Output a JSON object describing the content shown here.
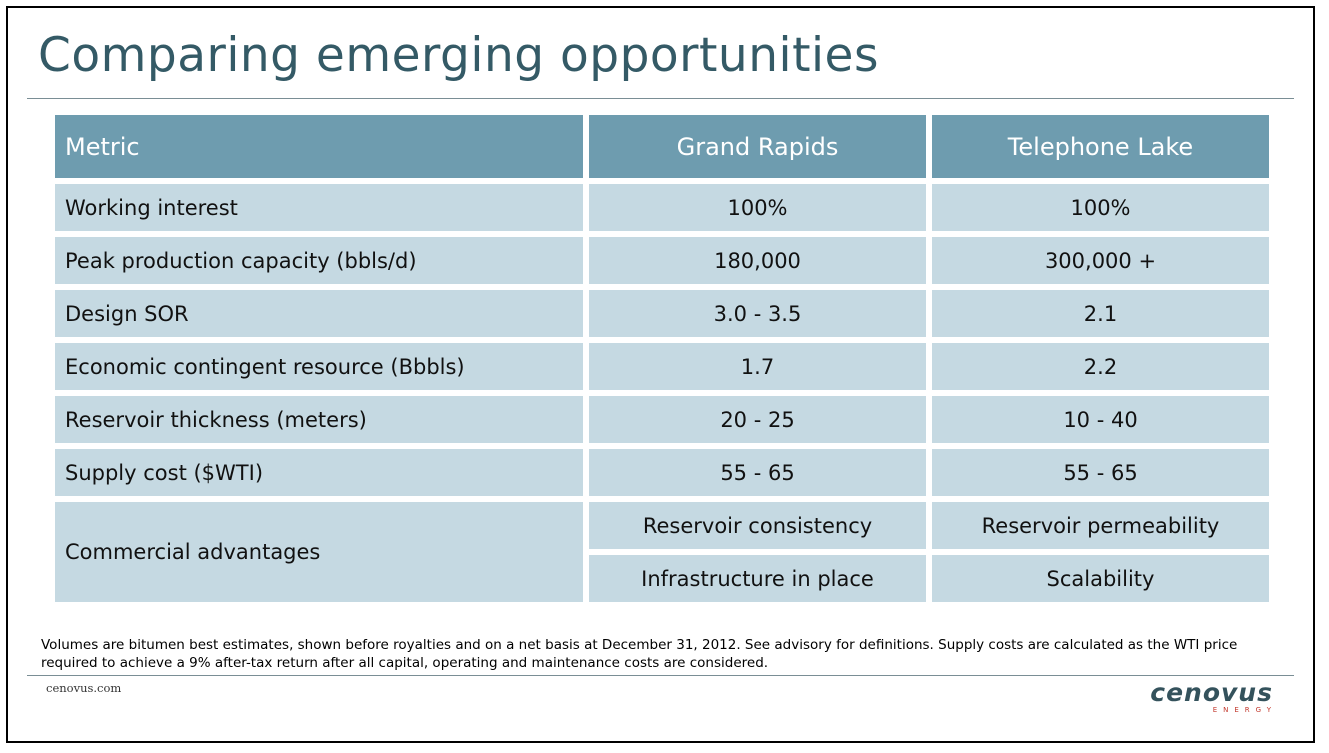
{
  "title": "Comparing emerging opportunities",
  "table": {
    "headers": [
      "Metric",
      "Grand Rapids",
      "Telephone Lake"
    ],
    "rows": [
      {
        "metric": "Working interest",
        "grand_rapids": "100%",
        "telephone_lake": "100%"
      },
      {
        "metric": "Peak production capacity (bbls/d)",
        "grand_rapids": "180,000",
        "telephone_lake": "300,000 +"
      },
      {
        "metric": "Design SOR",
        "grand_rapids": "3.0 - 3.5",
        "telephone_lake": "2.1"
      },
      {
        "metric": "Economic contingent resource (Bbbls)",
        "grand_rapids": "1.7",
        "telephone_lake": "2.2"
      },
      {
        "metric": "Reservoir thickness (meters)",
        "grand_rapids": "20 - 25",
        "telephone_lake": "10 - 40"
      },
      {
        "metric": "Supply cost ($WTI)",
        "grand_rapids": "55 - 65",
        "telephone_lake": "55 - 65"
      }
    ],
    "commercial": {
      "metric": "Commercial advantages",
      "grand_rapids": [
        "Reservoir consistency",
        "Infrastructure in place"
      ],
      "telephone_lake": [
        "Reservoir permeability",
        "Scalability"
      ]
    }
  },
  "footnote": "Volumes are bitumen best estimates, shown before royalties and on a net basis at December 31, 2012. See advisory for definitions. Supply costs are calculated as the WTI price required to achieve a 9% after-tax return after all capital, operating and maintenance costs are considered.",
  "website": "cenovus.com",
  "logo": {
    "word": "cenovus",
    "sub": "ENERGY"
  },
  "colors": {
    "header_bg": "#6e9caf",
    "cell_bg": "#c5d9e2",
    "title": "#345a66",
    "logo_accent": "#c2362b"
  }
}
